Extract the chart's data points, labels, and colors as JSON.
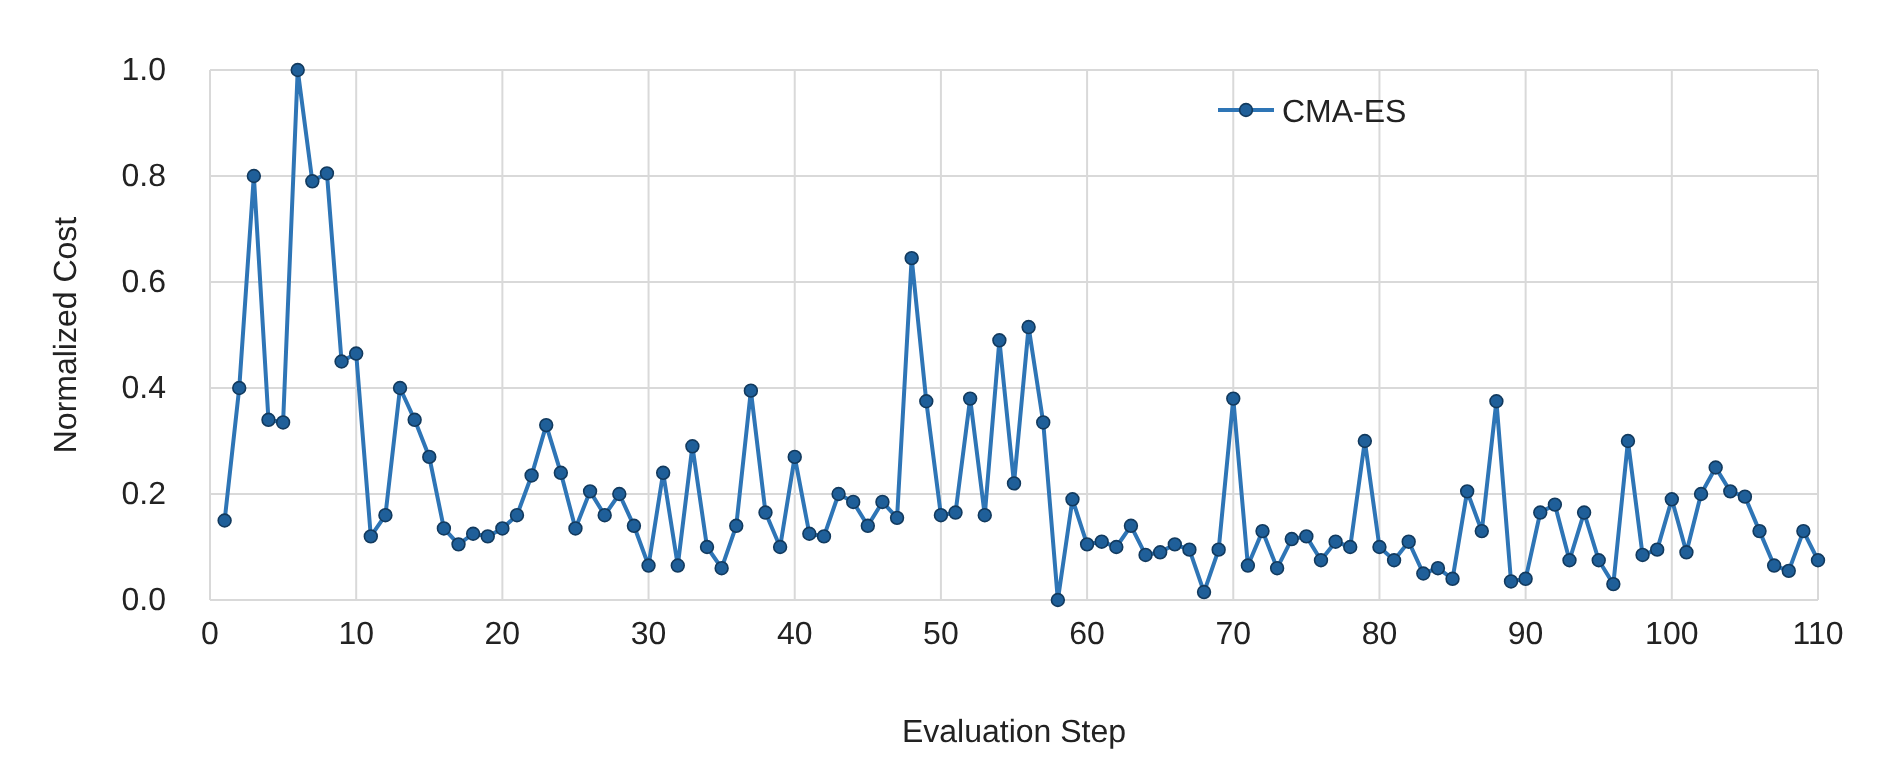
{
  "chart_data": {
    "type": "line",
    "xlabel": "Evaluation Step",
    "ylabel": "Normalized Cost",
    "x": [
      1,
      2,
      3,
      4,
      5,
      6,
      7,
      8,
      9,
      10,
      11,
      12,
      13,
      14,
      15,
      16,
      17,
      18,
      19,
      20,
      21,
      22,
      23,
      24,
      25,
      26,
      27,
      28,
      29,
      30,
      31,
      32,
      33,
      34,
      35,
      36,
      37,
      38,
      39,
      40,
      41,
      42,
      43,
      44,
      45,
      46,
      47,
      48,
      49,
      50,
      51,
      52,
      53,
      54,
      55,
      56,
      57,
      58,
      59,
      60,
      61,
      62,
      63,
      64,
      65,
      66,
      67,
      68,
      69,
      70,
      71,
      72,
      73,
      74,
      75,
      76,
      77,
      78,
      79,
      80,
      81,
      82,
      83,
      84,
      85,
      86,
      87,
      88,
      89,
      90,
      91,
      92,
      93,
      94,
      95,
      96,
      97,
      98,
      99,
      100,
      101,
      102,
      103,
      104,
      105,
      106,
      107,
      108,
      109,
      110
    ],
    "series": [
      {
        "name": "CMA-ES",
        "color": "#2e75b6",
        "values": [
          0.15,
          0.4,
          0.8,
          0.34,
          0.335,
          1.0,
          0.79,
          0.805,
          0.45,
          0.465,
          0.12,
          0.16,
          0.4,
          0.34,
          0.27,
          0.135,
          0.105,
          0.125,
          0.12,
          0.135,
          0.16,
          0.235,
          0.33,
          0.24,
          0.135,
          0.205,
          0.16,
          0.2,
          0.14,
          0.065,
          0.24,
          0.065,
          0.29,
          0.1,
          0.06,
          0.14,
          0.395,
          0.165,
          0.1,
          0.27,
          0.125,
          0.12,
          0.2,
          0.185,
          0.14,
          0.185,
          0.155,
          0.645,
          0.375,
          0.16,
          0.165,
          0.38,
          0.16,
          0.49,
          0.22,
          0.515,
          0.335,
          0.0,
          0.19,
          0.105,
          0.11,
          0.1,
          0.14,
          0.085,
          0.09,
          0.105,
          0.095,
          0.015,
          0.095,
          0.38,
          0.065,
          0.13,
          0.06,
          0.115,
          0.12,
          0.075,
          0.11,
          0.1,
          0.3,
          0.1,
          0.075,
          0.11,
          0.05,
          0.06,
          0.04,
          0.205,
          0.13,
          0.375,
          0.035,
          0.04,
          0.165,
          0.18,
          0.075,
          0.165,
          0.075,
          0.03,
          0.3,
          0.085,
          0.095,
          0.19,
          0.09,
          0.2,
          0.25,
          0.205,
          0.195,
          0.13,
          0.065,
          0.055,
          0.13,
          0.075
        ]
      }
    ],
    "xlim": [
      0,
      110
    ],
    "xticks": [
      0,
      10,
      20,
      30,
      40,
      50,
      60,
      70,
      80,
      90,
      100,
      110
    ],
    "ylim": [
      0,
      1.0
    ],
    "yticks": [
      {
        "value": 0,
        "label": "0.0"
      },
      {
        "value": 0.2,
        "label": "0.2"
      },
      {
        "value": 0.4,
        "label": "0.4"
      },
      {
        "value": 0.6,
        "label": "0.6"
      },
      {
        "value": 0.8,
        "label": "0.8"
      },
      {
        "value": 1.0,
        "label": "1.0"
      }
    ],
    "grid": true,
    "legend": "top right",
    "marker": "circle",
    "line_style": "solid"
  }
}
